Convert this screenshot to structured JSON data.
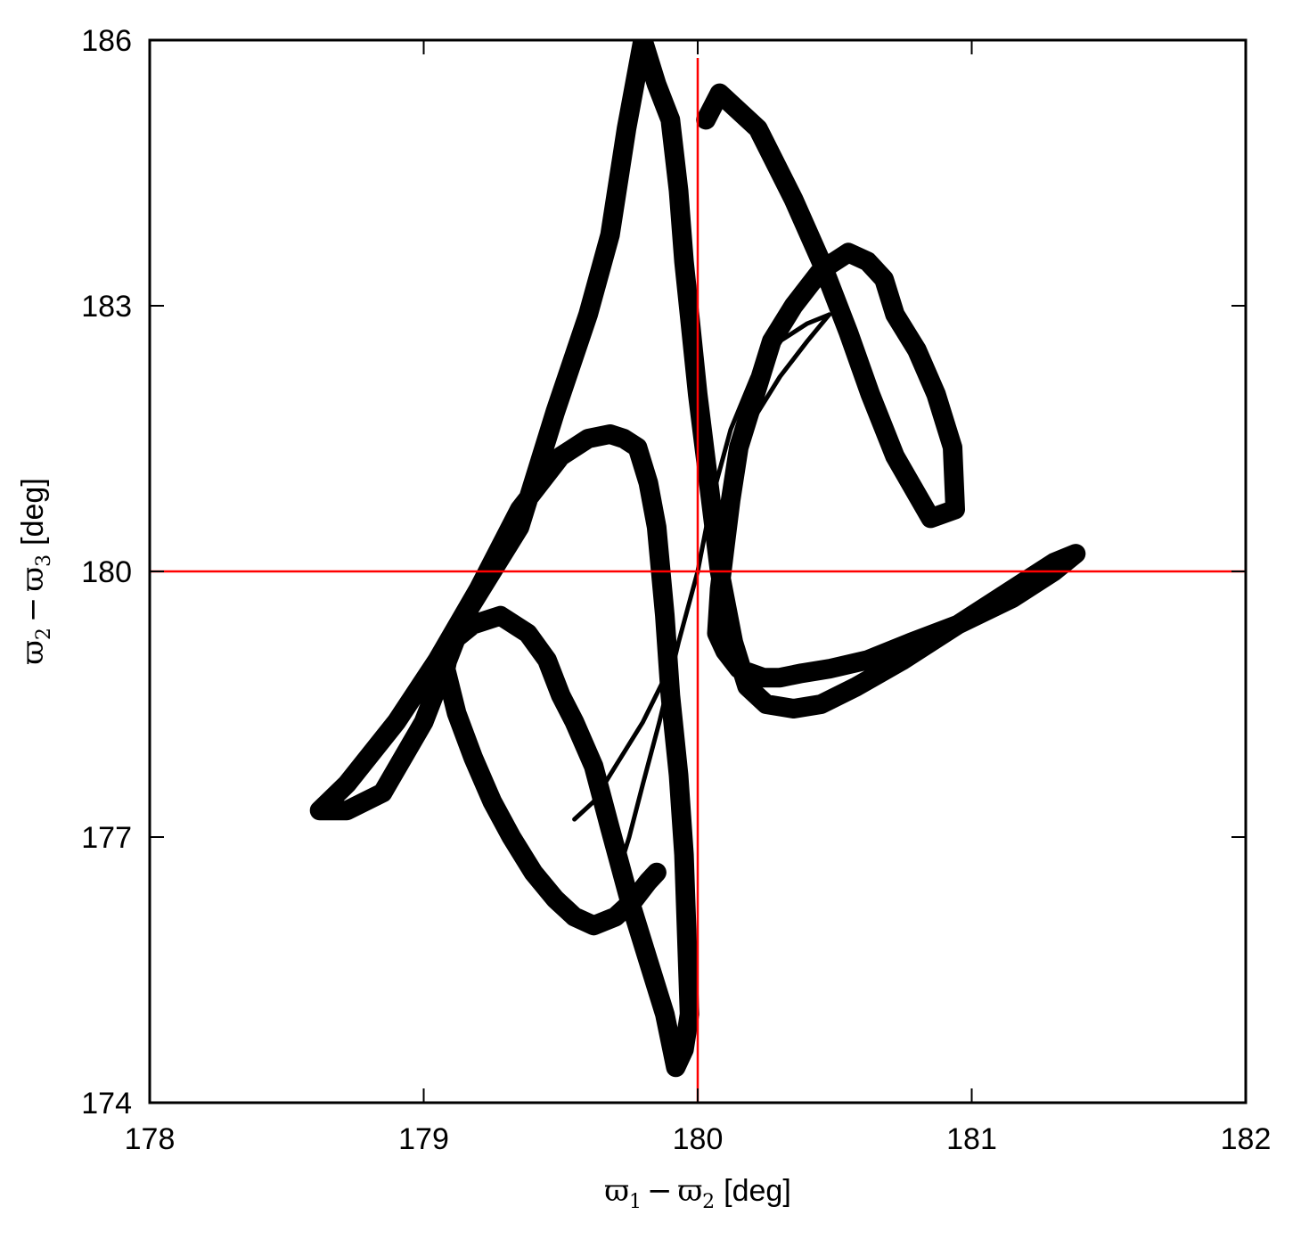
{
  "chart_data": {
    "type": "line",
    "title": "",
    "xlabel": {
      "var1": "ϖ",
      "sub1": "1",
      "minus": "−",
      "var2": "ϖ",
      "sub2": "2",
      "unit": "[deg]"
    },
    "ylabel": {
      "var1": "ϖ",
      "sub1": "2",
      "minus": "−",
      "var2": "ϖ",
      "sub2": "3",
      "unit": "[deg]"
    },
    "xlim": [
      178,
      182
    ],
    "ylim": [
      174,
      186
    ],
    "xticks": [
      178,
      179,
      180,
      181,
      182
    ],
    "yticks": [
      174,
      177,
      180,
      183,
      186
    ],
    "xtick_labels": [
      "178",
      "179",
      "180",
      "181",
      "182"
    ],
    "ytick_labels": [
      "174",
      "177",
      "180",
      "183",
      "186"
    ],
    "grid": false,
    "legend": "none",
    "colors": {
      "curve": "#000000",
      "reference": "#ff0000",
      "frame": "#000000"
    },
    "reference_lines": [
      {
        "orientation": "vertical",
        "x": 180
      },
      {
        "orientation": "horizontal",
        "y": 180
      }
    ],
    "series": [
      {
        "style": "thick",
        "x": [
          180.03,
          180.08,
          180.22,
          180.35,
          180.45,
          180.55,
          180.63,
          180.72,
          180.85,
          180.94,
          180.93,
          180.87,
          180.8,
          180.72,
          180.68,
          180.62,
          180.55,
          180.45,
          180.35,
          180.27,
          180.22,
          180.15,
          180.12,
          180.1,
          180.08,
          180.07,
          180.1,
          180.15,
          180.24,
          180.3,
          180.38,
          180.48,
          180.62,
          180.78,
          180.95,
          181.15,
          181.3,
          181.38,
          181.3,
          181.15,
          180.95,
          180.75,
          180.58,
          180.45,
          180.35,
          180.25,
          180.18,
          180.13,
          180.08,
          180.04,
          180.0,
          179.97,
          179.95,
          179.93,
          179.9,
          179.85,
          179.8,
          179.74,
          179.68,
          179.6,
          179.48,
          179.35,
          179.15,
          179.0,
          178.85,
          178.72,
          178.62,
          178.72,
          178.9,
          179.05,
          179.2,
          179.35,
          179.5,
          179.6,
          179.68,
          179.73,
          179.78,
          179.8,
          179.82,
          179.85,
          179.88,
          179.9,
          179.93,
          179.95,
          179.96,
          179.97,
          179.95,
          179.92,
          179.88,
          179.82,
          179.75,
          179.68,
          179.62,
          179.55,
          179.5,
          179.45,
          179.38,
          179.28,
          179.18,
          179.1,
          179.08,
          179.12,
          179.18,
          179.25,
          179.32,
          179.4,
          179.48,
          179.55,
          179.62,
          179.7,
          179.77,
          179.82,
          179.85
        ],
        "y": [
          185.1,
          185.4,
          185.0,
          184.2,
          183.5,
          182.7,
          182.0,
          181.3,
          180.6,
          180.7,
          181.4,
          182.0,
          182.5,
          182.9,
          183.3,
          183.5,
          183.6,
          183.4,
          183.0,
          182.6,
          182.1,
          181.4,
          180.8,
          180.3,
          179.8,
          179.3,
          179.1,
          178.9,
          178.8,
          178.8,
          178.85,
          178.9,
          179.0,
          179.2,
          179.4,
          179.7,
          180.0,
          180.2,
          180.1,
          179.8,
          179.4,
          179.0,
          178.7,
          178.5,
          178.45,
          178.5,
          178.7,
          179.2,
          180.0,
          181.0,
          182.0,
          182.9,
          183.5,
          184.3,
          185.1,
          185.5,
          186.0,
          185.0,
          183.8,
          182.9,
          181.8,
          180.5,
          179.5,
          178.3,
          177.5,
          177.3,
          177.3,
          177.6,
          178.3,
          179.0,
          179.8,
          180.7,
          181.3,
          181.5,
          181.55,
          181.5,
          181.4,
          181.2,
          181.0,
          180.5,
          179.5,
          178.6,
          177.7,
          176.8,
          175.9,
          175.0,
          174.6,
          174.4,
          175.0,
          175.6,
          176.3,
          177.1,
          177.8,
          178.3,
          178.6,
          179.0,
          179.3,
          179.5,
          179.4,
          179.2,
          178.9,
          178.4,
          177.9,
          177.4,
          177.0,
          176.6,
          176.3,
          176.1,
          176.0,
          176.1,
          176.3,
          176.5,
          176.6
        ]
      },
      {
        "style": "thin",
        "x": [
          179.72,
          179.75,
          179.8,
          179.86,
          179.93,
          180.0,
          180.05,
          180.12,
          180.2,
          180.3,
          180.4,
          180.48
        ],
        "y": [
          176.7,
          177.0,
          177.6,
          178.3,
          179.2,
          180.0,
          180.8,
          181.6,
          182.2,
          182.6,
          182.8,
          182.9
        ]
      },
      {
        "style": "thin",
        "x": [
          179.55,
          179.62,
          179.7,
          179.8,
          179.88
        ],
        "y": [
          177.2,
          177.4,
          177.8,
          178.3,
          178.8
        ]
      },
      {
        "style": "thin",
        "x": [
          180.12,
          180.2,
          180.3,
          180.4,
          180.48
        ],
        "y": [
          181.2,
          181.7,
          182.2,
          182.6,
          182.9
        ]
      }
    ]
  }
}
